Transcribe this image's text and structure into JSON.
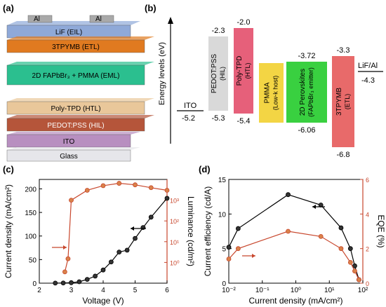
{
  "panels": {
    "a": {
      "label": "(a)",
      "layers": [
        {
          "name": "LiF (EIL)",
          "color": "#8fa9d8"
        },
        {
          "name": "3TPYMB (ETL)",
          "color": "#e07a20"
        },
        {
          "name": "2D FAPbBr₃ + PMMA (EML)",
          "color": "#2bbf8f"
        },
        {
          "name": "Poly-TPD (HTL)",
          "color": "#e9c79a"
        },
        {
          "name": "PEDOT:PSS (HIL)",
          "color": "#b5553a"
        },
        {
          "name": "ITO",
          "color": "#b88fc0"
        },
        {
          "name": "Glass",
          "color": "#e6e6ea"
        }
      ],
      "electrode_left": "Al",
      "electrode_right": "Al"
    },
    "b": {
      "label": "(b)",
      "ylabel": "Energy levels (eV)",
      "ito": {
        "name": "ITO",
        "level": "-5.2"
      },
      "lif": {
        "name": "LiF/Al",
        "level": "-4.3"
      },
      "boxes": [
        {
          "name": "PEDOT:PSS",
          "sub": "(HIL)",
          "top": "-2.3",
          "bottom": "-5.3",
          "color": "#d9d9d9"
        },
        {
          "name": "Poly-TPD",
          "sub": "(HTL)",
          "top": "-2.0",
          "bottom": "-5.4",
          "color": "#e6607a"
        },
        {
          "name": "PMMA",
          "sub": "(Low-k host)",
          "top": "",
          "bottom": "",
          "color": "#f3d544"
        },
        {
          "name": "2D Perovskites",
          "sub": "(FAPbBr₃ emitter)",
          "top": "-3.72",
          "bottom": "-6.06",
          "color": "#39d040"
        },
        {
          "name": "3TPYMB",
          "sub": "(ETL)",
          "top": "-3.3",
          "bottom": "-6.8",
          "color": "#e86a6a"
        }
      ]
    },
    "c": {
      "label": "(c)",
      "xlabel": "Voltage (V)",
      "ylabel": "Current density  (mA/cm²)",
      "y2label": "Luminance (cd/m²)"
    },
    "d": {
      "label": "(d)",
      "xlabel": "Current density (mA/cm²)",
      "ylabel": "Current efficiency (cd/A)",
      "y2label": "EQE (%)"
    }
  },
  "chart_data": [
    {
      "type": "line",
      "panel": "c",
      "xlim": [
        2,
        6
      ],
      "x_ticks": [
        "2",
        "3",
        "4",
        "5",
        "6"
      ],
      "ylim": [
        0,
        220
      ],
      "y_ticks": [
        "0",
        "50",
        "100",
        "150",
        "200"
      ],
      "y2_scale": "log",
      "y2lim": [
        0.1,
        10000
      ],
      "y2_ticks": [
        "10⁰",
        "10¹",
        "10²",
        "10³"
      ],
      "series": [
        {
          "axis": "left",
          "color": "#000000",
          "x": [
            2.5,
            2.75,
            3.0,
            3.25,
            3.5,
            3.75,
            4.0,
            4.25,
            4.5,
            4.75,
            5.0,
            5.25,
            5.5,
            6.0
          ],
          "values": [
            0.2,
            0.4,
            1.0,
            3,
            8,
            15,
            28,
            45,
            66,
            70,
            95,
            118,
            140,
            180
          ]
        },
        {
          "axis": "right",
          "color": "#c8472d",
          "x": [
            2.8,
            2.9,
            3.0,
            3.5,
            4.0,
            4.5,
            5.0,
            5.5,
            6.0
          ],
          "values": [
            0.35,
            1.5,
            1000,
            3000,
            5000,
            6500,
            5500,
            4000,
            3000
          ]
        }
      ]
    },
    {
      "type": "line",
      "panel": "d",
      "x_scale": "log",
      "xlim": [
        0.01,
        200
      ],
      "x_ticks": [
        "10⁻²",
        "10⁻¹",
        "10⁰",
        "10¹",
        "10²"
      ],
      "ylim": [
        0,
        15
      ],
      "y_ticks": [
        "0",
        "5",
        "10",
        "15"
      ],
      "y2lim": [
        0,
        6
      ],
      "y2_ticks": [
        "0",
        "2",
        "4",
        "6"
      ],
      "series": [
        {
          "axis": "left",
          "color": "#000000",
          "x": [
            0.01,
            0.02,
            0.8,
            9,
            40,
            80,
            110,
            150
          ],
          "values": [
            5.2,
            7.9,
            12.8,
            11.3,
            8.0,
            5.0,
            2.5,
            0.5
          ]
        },
        {
          "axis": "right",
          "color": "#c8472d",
          "x": [
            0.01,
            0.02,
            0.8,
            9,
            40,
            80,
            110,
            150
          ],
          "values": [
            1.4,
            2.0,
            3.0,
            2.7,
            2.0,
            1.2,
            0.7,
            0.2
          ]
        }
      ]
    }
  ]
}
